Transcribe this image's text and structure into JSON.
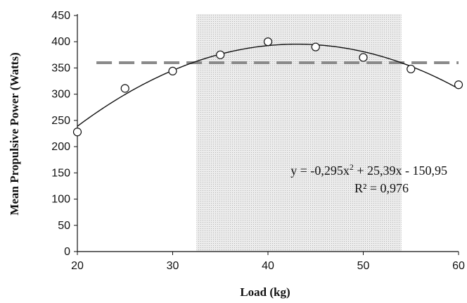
{
  "chart_data": {
    "type": "scatter",
    "title": "",
    "xlabel": "Load (kg)",
    "ylabel": "Mean Propulsive Power (Watts)",
    "xlim": [
      20,
      60
    ],
    "ylim": [
      0,
      450
    ],
    "xticks": [
      "20",
      "30",
      "40",
      "50",
      "60"
    ],
    "yticks": [
      "0",
      "50",
      "100",
      "150",
      "200",
      "250",
      "300",
      "350",
      "400",
      "450"
    ],
    "grid": false,
    "series": [
      {
        "marker": "open-circle",
        "x": [
          20,
          25,
          30,
          35,
          40,
          45,
          50,
          55,
          60
        ],
        "y": [
          228,
          311,
          344,
          375,
          400,
          390,
          370,
          348,
          318
        ]
      }
    ],
    "trendline": {
      "type": "polynomial",
      "coefficients": {
        "a": -0.295,
        "b": 25.39,
        "c": -150.95
      },
      "equation_prefix": "y = -0,295x",
      "equation_exp": "2",
      "equation_suffix": " + 25,39x - 150,95",
      "r_squared": "R² = 0,976"
    },
    "reference_line": {
      "y": 360,
      "x_start": 22,
      "x_end": 60,
      "style": "dashed",
      "color": "#8a8a8a"
    },
    "shaded_region": {
      "x_start": 32.5,
      "x_end": 54,
      "color": "#e4e4e4"
    }
  }
}
